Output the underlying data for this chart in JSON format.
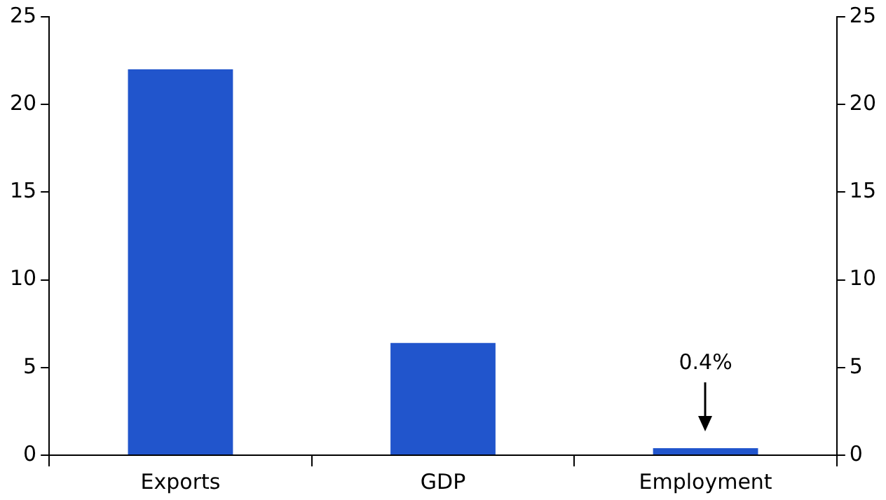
{
  "chart_data": {
    "type": "bar",
    "categories": [
      "Exports",
      "GDP",
      "Employment"
    ],
    "values": [
      22,
      6.4,
      0.4
    ],
    "color": "#2155cc",
    "ylim": [
      0,
      25
    ],
    "yticks": [
      0,
      5,
      10,
      15,
      20,
      25
    ],
    "y2lim": [
      0,
      25
    ],
    "y2ticks": [
      0,
      5,
      10,
      15,
      20,
      25
    ],
    "grid": false,
    "legend": false,
    "annotations": [
      "0.4%"
    ]
  }
}
